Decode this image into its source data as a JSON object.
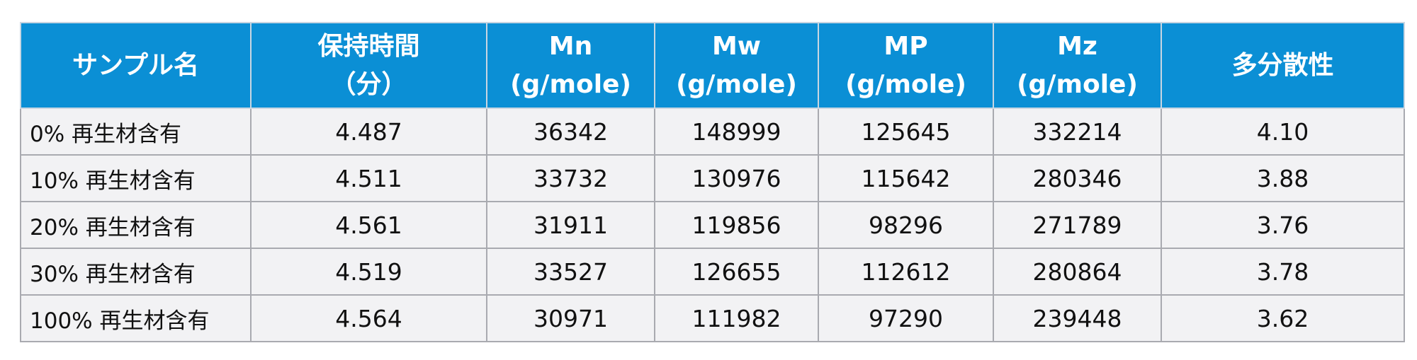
{
  "table": {
    "header": [
      [
        "サンプル名"
      ],
      [
        "保持時間",
        "（分）"
      ],
      [
        "Mn",
        "(g/mole)"
      ],
      [
        "Mw",
        "(g/mole)"
      ],
      [
        "MP",
        "(g/mole)"
      ],
      [
        "Mz",
        "(g/mole)"
      ],
      [
        "多分散性"
      ]
    ],
    "rows": [
      [
        "0% 再生材含有",
        "4.487",
        "36342",
        "148999",
        "125645",
        "332214",
        "4.10"
      ],
      [
        "10% 再生材含有",
        "4.511",
        "33732",
        "130976",
        "115642",
        "280346",
        "3.88"
      ],
      [
        "20% 再生材含有",
        "4.561",
        "31911",
        "119856",
        "98296",
        "271789",
        "3.76"
      ],
      [
        "30% 再生材含有",
        "4.519",
        "33527",
        "126655",
        "112612",
        "280864",
        "3.78"
      ],
      [
        "100% 再生材含有",
        "4.564",
        "30971",
        "111982",
        "97290",
        "239448",
        "3.62"
      ]
    ]
  }
}
